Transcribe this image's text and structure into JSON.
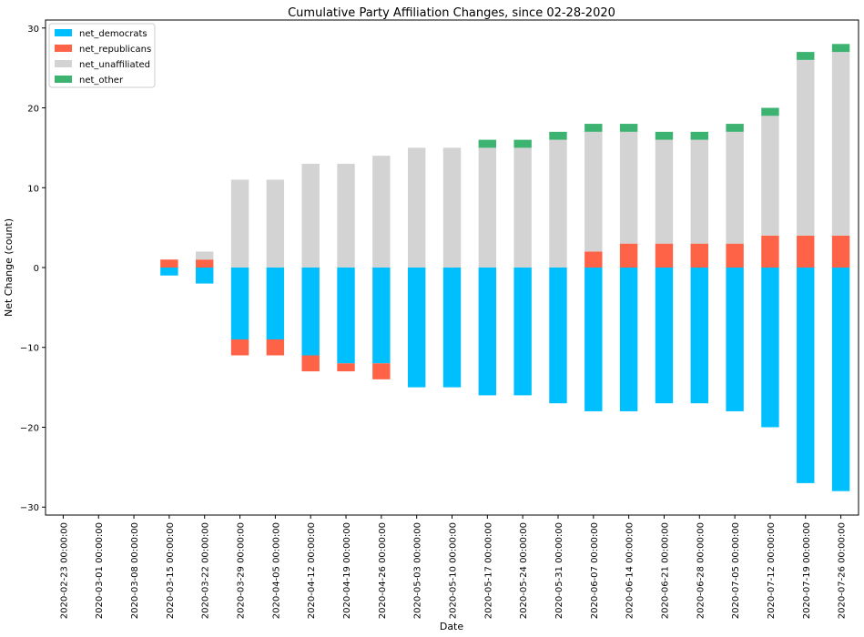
{
  "chart_data": {
    "type": "bar",
    "stacked": true,
    "title": "Cumulative Party Affiliation Changes, since 02-28-2020",
    "xlabel": "Date",
    "ylabel": "Net Change (count)",
    "ylim": [
      -31,
      31
    ],
    "yticks": [
      -30,
      -20,
      -10,
      0,
      10,
      20,
      30
    ],
    "legend_position": "top-left",
    "categories": [
      "2020-02-23 00:00:00",
      "2020-03-01 00:00:00",
      "2020-03-08 00:00:00",
      "2020-03-15 00:00:00",
      "2020-03-22 00:00:00",
      "2020-03-29 00:00:00",
      "2020-04-05 00:00:00",
      "2020-04-12 00:00:00",
      "2020-04-19 00:00:00",
      "2020-04-26 00:00:00",
      "2020-05-03 00:00:00",
      "2020-05-10 00:00:00",
      "2020-05-17 00:00:00",
      "2020-05-24 00:00:00",
      "2020-05-31 00:00:00",
      "2020-06-07 00:00:00",
      "2020-06-14 00:00:00",
      "2020-06-21 00:00:00",
      "2020-06-28 00:00:00",
      "2020-07-05 00:00:00",
      "2020-07-12 00:00:00",
      "2020-07-19 00:00:00",
      "2020-07-26 00:00:00"
    ],
    "series": [
      {
        "name": "net_democrats",
        "color": "#00bfff",
        "values": [
          0,
          0,
          0,
          -1,
          -2,
          -9,
          -9,
          -11,
          -12,
          -12,
          -15,
          -15,
          -16,
          -16,
          -17,
          -18,
          -18,
          -17,
          -17,
          -18,
          -20,
          -27,
          -28
        ]
      },
      {
        "name": "net_republicans",
        "color": "#ff6347",
        "values": [
          0,
          0,
          0,
          1,
          1,
          -2,
          -2,
          -2,
          -1,
          -2,
          0,
          0,
          0,
          0,
          0,
          2,
          3,
          3,
          3,
          3,
          4,
          4,
          4
        ]
      },
      {
        "name": "net_unaffiliated",
        "color": "#d3d3d3",
        "values": [
          0,
          0,
          0,
          0,
          1,
          11,
          11,
          13,
          13,
          14,
          15,
          15,
          15,
          15,
          16,
          15,
          14,
          13,
          13,
          14,
          15,
          22,
          23
        ]
      },
      {
        "name": "net_other",
        "color": "#3cb371",
        "values": [
          0,
          0,
          0,
          0,
          0,
          0,
          0,
          0,
          0,
          0,
          0,
          0,
          1,
          1,
          1,
          1,
          1,
          1,
          1,
          1,
          1,
          1,
          1
        ]
      }
    ]
  }
}
